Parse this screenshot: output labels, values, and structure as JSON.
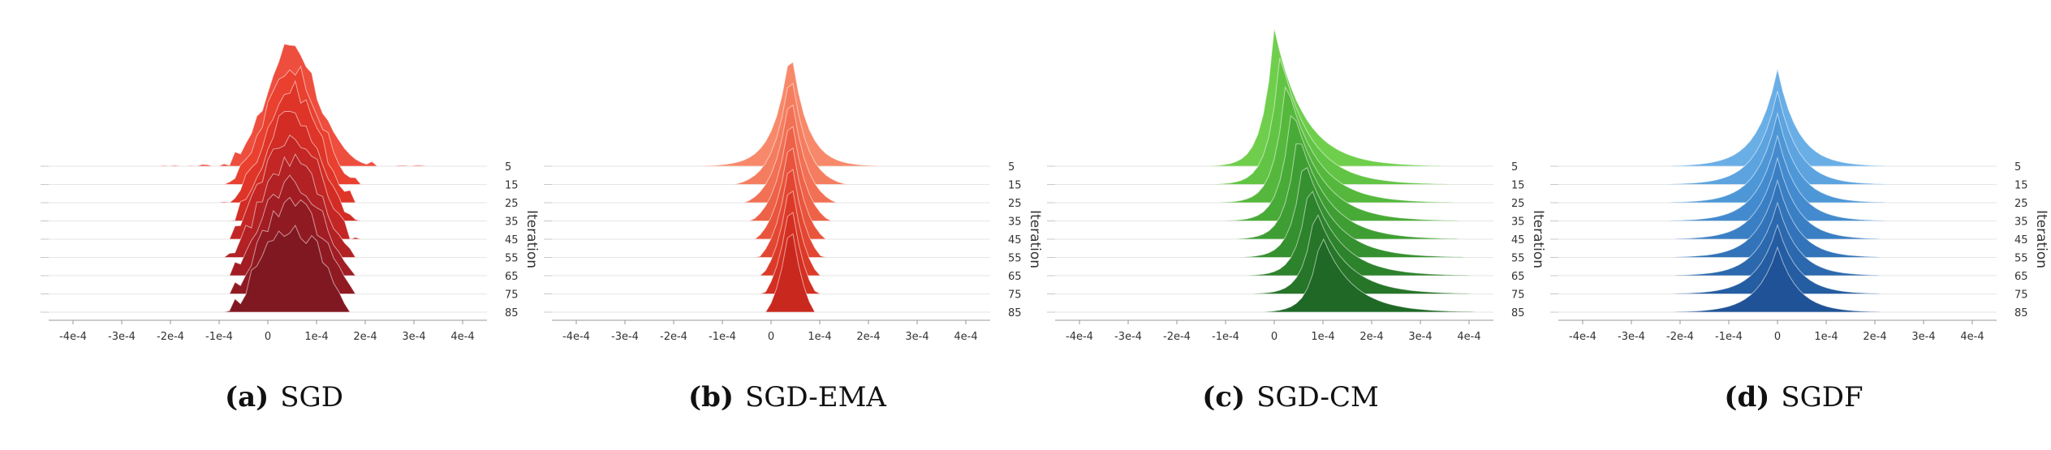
{
  "chart_data": [
    {
      "type": "area",
      "subtype": "ridgeline",
      "label": "(a)",
      "title": "SGD",
      "x_ticks": [
        "-4e-4",
        "-3e-4",
        "-2e-4",
        "-1e-4",
        "0",
        "1e-4",
        "2e-4",
        "3e-4",
        "4e-4"
      ],
      "xlim": [
        -0.00045,
        0.00045
      ],
      "ylabel": "Iteration",
      "iterations": [
        "5",
        "15",
        "25",
        "35",
        "45",
        "55",
        "65",
        "75",
        "85"
      ],
      "distribution": "irregular",
      "colors": [
        "#ee4e3e",
        "#e9402f",
        "#df3428",
        "#d22c24",
        "#c32624",
        "#b22124",
        "#a11d23",
        "#901a22",
        "#801821"
      ]
    },
    {
      "type": "area",
      "subtype": "ridgeline",
      "label": "(b)",
      "title": "SGD-EMA",
      "x_ticks": [
        "-4e-4",
        "-3e-4",
        "-2e-4",
        "-1e-4",
        "0",
        "1e-4",
        "2e-4",
        "3e-4",
        "4e-4"
      ],
      "xlim": [
        -0.00045,
        0.00045
      ],
      "ylabel": "Iteration",
      "iterations": [
        "5",
        "15",
        "25",
        "35",
        "45",
        "55",
        "65",
        "75",
        "85"
      ],
      "distribution": "sharp-symmetric",
      "colors": [
        "#f7896a",
        "#f57d5f",
        "#f27054",
        "#ee6248",
        "#e9543c",
        "#e34632",
        "#dc3a28",
        "#d32f22",
        "#c9281e"
      ]
    },
    {
      "type": "area",
      "subtype": "ridgeline",
      "label": "(c)",
      "title": "SGD-CM",
      "x_ticks": [
        "-4e-4",
        "-3e-4",
        "-2e-4",
        "-1e-4",
        "0",
        "1e-4",
        "2e-4",
        "3e-4",
        "4e-4"
      ],
      "xlim": [
        -0.00045,
        0.00045
      ],
      "ylabel": "Iteration",
      "iterations": [
        "5",
        "15",
        "25",
        "35",
        "45",
        "55",
        "65",
        "75",
        "85"
      ],
      "distribution": "drifting-skewed",
      "colors": [
        "#6fcf4c",
        "#62c444",
        "#55b83d",
        "#49ab37",
        "#3f9e33",
        "#35902f",
        "#2d822c",
        "#267529",
        "#1f6826"
      ]
    },
    {
      "type": "area",
      "subtype": "ridgeline",
      "label": "(d)",
      "title": "SGDF",
      "x_ticks": [
        "-4e-4",
        "-3e-4",
        "-2e-4",
        "-1e-4",
        "0",
        "1e-4",
        "2e-4",
        "3e-4",
        "4e-4"
      ],
      "xlim": [
        -0.00045,
        0.00045
      ],
      "ylabel": "Iteration",
      "iterations": [
        "5",
        "15",
        "25",
        "35",
        "45",
        "55",
        "65",
        "75",
        "85"
      ],
      "distribution": "symmetric",
      "colors": [
        "#6aaee6",
        "#5ca3df",
        "#4e97d7",
        "#438bce",
        "#3a7fc4",
        "#3273b9",
        "#2b68ae",
        "#255da2",
        "#1f5296"
      ]
    }
  ]
}
